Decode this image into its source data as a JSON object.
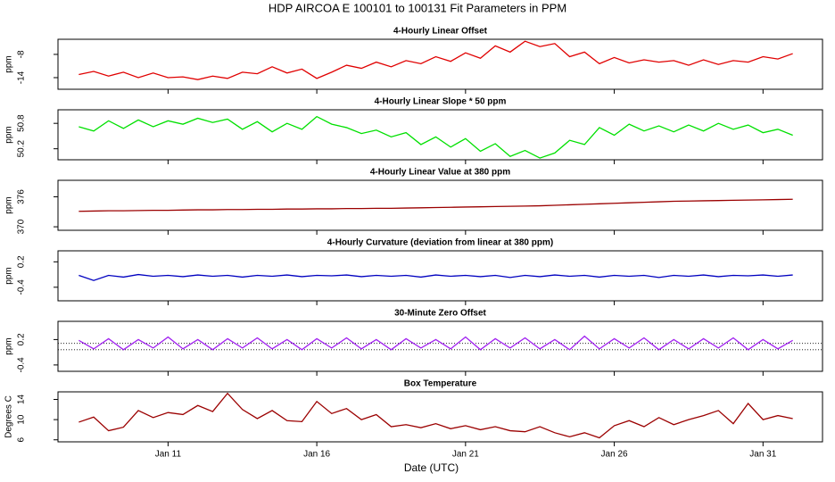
{
  "title": "HDP   AIRCOA E   100101 to 100131   Fit Parameters in PPM",
  "chart_data": [
    {
      "type": "line",
      "title": "4-Hourly Linear Offset",
      "ylabel": "ppm",
      "color": "#e00000",
      "x": [
        8,
        8.5,
        9,
        9.5,
        10,
        10.5,
        11,
        11.5,
        12,
        12.5,
        13,
        13.5,
        14,
        14.5,
        15,
        15.5,
        16,
        16.5,
        17,
        17.5,
        18,
        18.5,
        19,
        19.5,
        20,
        20.5,
        21,
        21.5,
        22,
        22.5,
        23,
        23.5,
        24,
        24.5,
        25,
        25.5,
        26,
        26.5,
        27,
        27.5,
        28,
        28.5,
        29,
        29.5,
        30,
        30.5,
        31,
        31.5,
        32
      ],
      "values": [
        -13.2,
        -12.4,
        -13.6,
        -12.6,
        -14.0,
        -12.8,
        -14.0,
        -13.8,
        -14.5,
        -13.6,
        -14.2,
        -12.6,
        -13.0,
        -11.2,
        -12.8,
        -11.8,
        -14.2,
        -12.6,
        -10.8,
        -11.6,
        -10.0,
        -11.2,
        -9.6,
        -10.4,
        -8.6,
        -9.8,
        -7.6,
        -9.0,
        -5.8,
        -7.4,
        -4.6,
        -6.0,
        -5.2,
        -8.6,
        -7.4,
        -10.4,
        -8.8,
        -10.2,
        -9.4,
        -10.0,
        -9.6,
        -10.8,
        -9.4,
        -10.6,
        -9.6,
        -10.0,
        -8.6,
        -9.2,
        -7.8
      ],
      "xlim": [
        7.3,
        33.0
      ],
      "xticks": [
        11,
        16,
        21,
        26,
        31
      ],
      "ylim": [
        -17.0,
        -4.1
      ],
      "yticks": [
        -8,
        -14
      ]
    },
    {
      "type": "line",
      "title": "4-Hourly Linear Slope * 50 ppm",
      "ylabel": "ppm",
      "color": "#00e000",
      "x": [
        8,
        8.5,
        9,
        9.5,
        10,
        10.5,
        11,
        11.5,
        12,
        12.5,
        13,
        13.5,
        14,
        14.5,
        15,
        15.5,
        16,
        16.5,
        17,
        17.5,
        18,
        18.5,
        19,
        19.5,
        20,
        20.5,
        21,
        21.5,
        22,
        22.5,
        23,
        23.5,
        24,
        24.5,
        25,
        25.5,
        26,
        26.5,
        27,
        27.5,
        28,
        28.5,
        29,
        29.5,
        30,
        30.5,
        31,
        31.5,
        32
      ],
      "values": [
        50.72,
        50.62,
        50.86,
        50.68,
        50.88,
        50.72,
        50.86,
        50.78,
        50.92,
        50.82,
        50.9,
        50.66,
        50.84,
        50.6,
        50.8,
        50.66,
        50.96,
        50.78,
        50.7,
        50.56,
        50.64,
        50.48,
        50.58,
        50.3,
        50.48,
        50.24,
        50.44,
        50.14,
        50.32,
        50.02,
        50.16,
        49.98,
        50.1,
        50.4,
        50.3,
        50.7,
        50.52,
        50.78,
        50.62,
        50.74,
        50.6,
        50.76,
        50.62,
        50.8,
        50.66,
        50.76,
        50.58,
        50.66,
        50.52
      ],
      "xlim": [
        7.3,
        33.0
      ],
      "xticks": [
        11,
        16,
        21,
        26,
        31
      ],
      "ylim": [
        49.94,
        51.12
      ],
      "yticks": [
        50.8,
        50.2
      ]
    },
    {
      "type": "line",
      "title": "4-Hourly Linear Value at 380 ppm",
      "ylabel": "ppm",
      "color": "#9b0000",
      "x": [
        8,
        8.5,
        9,
        9.5,
        10,
        10.5,
        11,
        11.5,
        12,
        12.5,
        13,
        13.5,
        14,
        14.5,
        15,
        15.5,
        16,
        16.5,
        17,
        17.5,
        18,
        18.5,
        19,
        19.5,
        20,
        20.5,
        21,
        21.5,
        22,
        22.5,
        23,
        23.5,
        24,
        24.5,
        25,
        25.5,
        26,
        26.5,
        27,
        27.5,
        28,
        28.5,
        29,
        29.5,
        30,
        30.5,
        31,
        31.5,
        32
      ],
      "values": [
        373.1,
        373.15,
        373.2,
        373.2,
        373.25,
        373.3,
        373.3,
        373.35,
        373.4,
        373.4,
        373.45,
        373.45,
        373.5,
        373.5,
        373.55,
        373.55,
        373.6,
        373.6,
        373.65,
        373.65,
        373.7,
        373.7,
        373.75,
        373.8,
        373.85,
        373.9,
        373.95,
        374.0,
        374.05,
        374.1,
        374.15,
        374.2,
        374.3,
        374.4,
        374.5,
        374.6,
        374.7,
        374.8,
        374.9,
        375.0,
        375.1,
        375.15,
        375.2,
        375.25,
        375.3,
        375.35,
        375.4,
        375.45,
        375.5
      ],
      "xlim": [
        7.3,
        33.0
      ],
      "xticks": [
        11,
        16,
        21,
        26,
        31
      ],
      "ylim": [
        369.3,
        379.3
      ],
      "yticks": [
        376,
        370
      ]
    },
    {
      "type": "line",
      "title": "4-Hourly Curvature (deviation from linear at 380 ppm)",
      "ylabel": "ppm",
      "color": "#0000c0",
      "x": [
        8,
        8.5,
        9,
        9.5,
        10,
        10.5,
        11,
        11.5,
        12,
        12.5,
        13,
        13.5,
        14,
        14.5,
        15,
        15.5,
        16,
        16.5,
        17,
        17.5,
        18,
        18.5,
        19,
        19.5,
        20,
        20.5,
        21,
        21.5,
        22,
        22.5,
        23,
        23.5,
        24,
        24.5,
        25,
        25.5,
        26,
        26.5,
        27,
        27.5,
        28,
        28.5,
        29,
        29.5,
        30,
        30.5,
        31,
        31.5,
        32
      ],
      "values": [
        -0.12,
        -0.24,
        -0.12,
        -0.16,
        -0.1,
        -0.14,
        -0.12,
        -0.15,
        -0.11,
        -0.14,
        -0.12,
        -0.16,
        -0.12,
        -0.14,
        -0.11,
        -0.15,
        -0.12,
        -0.13,
        -0.11,
        -0.15,
        -0.12,
        -0.14,
        -0.12,
        -0.16,
        -0.11,
        -0.14,
        -0.12,
        -0.15,
        -0.12,
        -0.17,
        -0.12,
        -0.15,
        -0.11,
        -0.14,
        -0.12,
        -0.16,
        -0.12,
        -0.14,
        -0.12,
        -0.17,
        -0.12,
        -0.14,
        -0.11,
        -0.15,
        -0.12,
        -0.13,
        -0.11,
        -0.14,
        -0.11
      ],
      "xlim": [
        7.3,
        33.0
      ],
      "xticks": [
        11,
        16,
        21,
        26,
        31
      ],
      "ylim": [
        -0.72,
        0.46
      ],
      "yticks": [
        0.2,
        -0.4
      ]
    },
    {
      "type": "line",
      "title": "30-Minute Zero Offset",
      "ylabel": "ppm",
      "color": "#a020f0",
      "x": [
        8,
        8.5,
        9,
        9.5,
        10,
        10.5,
        11,
        11.5,
        12,
        12.5,
        13,
        13.5,
        14,
        14.5,
        15,
        15.5,
        16,
        16.5,
        17,
        17.5,
        18,
        18.5,
        19,
        19.5,
        20,
        20.5,
        21,
        21.5,
        22,
        22.5,
        23,
        23.5,
        24,
        24.5,
        25,
        25.5,
        26,
        26.5,
        27,
        27.5,
        28,
        28.5,
        29,
        29.5,
        30,
        30.5,
        31,
        31.5,
        32
      ],
      "values": [
        0.18,
        -0.02,
        0.22,
        -0.04,
        0.2,
        0.0,
        0.26,
        -0.02,
        0.2,
        -0.04,
        0.22,
        0.0,
        0.24,
        -0.02,
        0.2,
        -0.04,
        0.22,
        0.0,
        0.24,
        -0.02,
        0.2,
        -0.04,
        0.22,
        0.0,
        0.2,
        -0.02,
        0.26,
        -0.04,
        0.22,
        0.0,
        0.24,
        -0.02,
        0.2,
        -0.04,
        0.28,
        -0.02,
        0.22,
        0.0,
        0.24,
        -0.04,
        0.2,
        -0.02,
        0.22,
        0.0,
        0.24,
        -0.04,
        0.2,
        -0.02,
        0.18
      ],
      "hlines": [
        0.11,
        -0.04
      ],
      "xlim": [
        7.3,
        33.0
      ],
      "xticks": [
        11,
        16,
        21,
        26,
        31
      ],
      "ylim": [
        -0.55,
        0.63
      ],
      "yticks": [
        0.2,
        -0.4
      ]
    },
    {
      "type": "line",
      "title": "Box Temperature",
      "ylabel": "Degrees C",
      "xlabel": "Date (UTC)",
      "color": "#9b0000",
      "x": [
        8,
        8.5,
        9,
        9.5,
        10,
        10.5,
        11,
        11.5,
        12,
        12.5,
        13,
        13.5,
        14,
        14.5,
        15,
        15.5,
        16,
        16.5,
        17,
        17.5,
        18,
        18.5,
        19,
        19.5,
        20,
        20.5,
        21,
        21.5,
        22,
        22.5,
        23,
        23.5,
        24,
        24.5,
        25,
        25.5,
        26,
        26.5,
        27,
        27.5,
        28,
        28.5,
        29,
        29.5,
        30,
        30.5,
        31,
        31.5,
        32
      ],
      "values": [
        9.5,
        10.5,
        7.8,
        8.5,
        11.8,
        10.4,
        11.4,
        11.0,
        12.8,
        11.6,
        15.2,
        12.0,
        10.2,
        11.8,
        9.8,
        9.6,
        13.6,
        11.2,
        12.2,
        10.0,
        11.0,
        8.6,
        9.0,
        8.4,
        9.2,
        8.2,
        8.8,
        8.0,
        8.6,
        7.8,
        7.6,
        8.6,
        7.4,
        6.6,
        7.4,
        6.4,
        8.8,
        9.8,
        8.6,
        10.4,
        9.0,
        10.0,
        10.8,
        11.8,
        9.2,
        13.2,
        10.0,
        10.8,
        10.2
      ],
      "xlim": [
        7.3,
        33.0
      ],
      "xticks": [
        {
          "value": 11,
          "label": "Jan 11"
        },
        {
          "value": 16,
          "label": "Jan 16"
        },
        {
          "value": 21,
          "label": "Jan 21"
        },
        {
          "value": 26,
          "label": "Jan 26"
        },
        {
          "value": 31,
          "label": "Jan 31"
        }
      ],
      "ylim": [
        5.6,
        15.5
      ],
      "yticks": [
        14,
        10,
        6
      ]
    }
  ]
}
